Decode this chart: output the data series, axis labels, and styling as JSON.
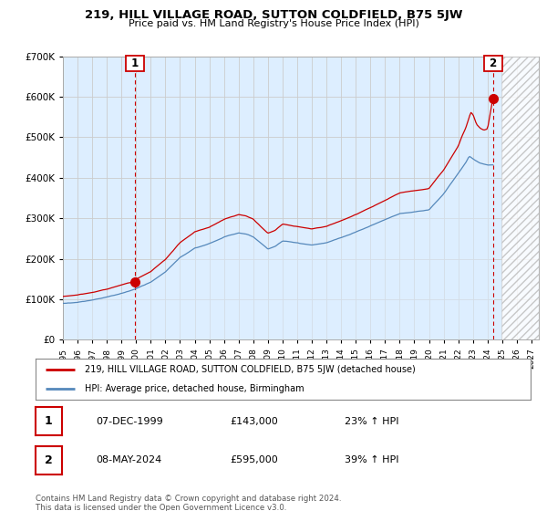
{
  "title": "219, HILL VILLAGE ROAD, SUTTON COLDFIELD, B75 5JW",
  "subtitle": "Price paid vs. HM Land Registry's House Price Index (HPI)",
  "sale1_date": "07-DEC-1999",
  "sale1_price": 143000,
  "sale1_label": "1",
  "sale1_hpi": "23% ↑ HPI",
  "sale2_date": "08-MAY-2024",
  "sale2_price": 595000,
  "sale2_label": "2",
  "sale2_hpi": "39% ↑ HPI",
  "legend_line1": "219, HILL VILLAGE ROAD, SUTTON COLDFIELD, B75 5JW (detached house)",
  "legend_line2": "HPI: Average price, detached house, Birmingham",
  "footnote": "Contains HM Land Registry data © Crown copyright and database right 2024.\nThis data is licensed under the Open Government Licence v3.0.",
  "red_color": "#cc0000",
  "blue_color": "#5588bb",
  "fill_color": "#ddeeff",
  "grid_color": "#cccccc",
  "background_color": "#ffffff",
  "ylim": [
    0,
    700000
  ],
  "xlim_start": 1995.0,
  "xlim_end": 2027.5,
  "yticks": [
    0,
    100000,
    200000,
    300000,
    400000,
    500000,
    600000,
    700000
  ],
  "xticks": [
    1995,
    1996,
    1997,
    1998,
    1999,
    2000,
    2001,
    2002,
    2003,
    2004,
    2005,
    2006,
    2007,
    2008,
    2009,
    2010,
    2011,
    2012,
    2013,
    2014,
    2015,
    2016,
    2017,
    2018,
    2019,
    2020,
    2021,
    2022,
    2023,
    2024,
    2025,
    2026,
    2027
  ],
  "sale1_x": 1999.917,
  "sale1_y": 143000,
  "sale2_x": 2024.37,
  "sale2_y": 595000,
  "vline1_x": 1999.917,
  "vline2_x": 2024.37,
  "hatch_start": 2024.92
}
